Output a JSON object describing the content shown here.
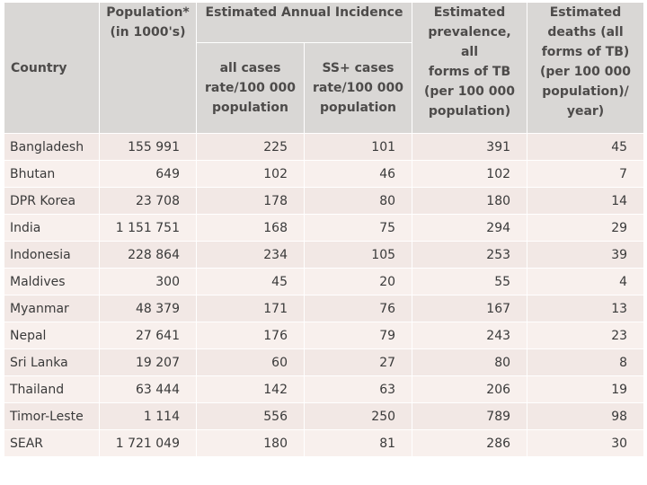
{
  "table": {
    "headers": {
      "country": "Country",
      "population_line1": "Population*",
      "population_line2": "(in 1000's)",
      "incidence_group": "Estimated Annual Incidence",
      "all_cases_line1": "all cases",
      "all_cases_line2": "rate/100 000",
      "all_cases_line3": "population",
      "ss_cases_line1": "SS+ cases",
      "ss_cases_line2": "rate/100 000",
      "ss_cases_line3": "population",
      "prevalence_line1": "Estimated",
      "prevalence_line2": "prevalence, all",
      "prevalence_line3": "forms of TB",
      "prevalence_line4": "(per 100 000",
      "prevalence_line5": "population)",
      "deaths_line1": "Estimated",
      "deaths_line2": "deaths (all",
      "deaths_line3": "forms of TB)",
      "deaths_line4": "(per 100 000",
      "deaths_line5": "population)/",
      "deaths_line6": "year)"
    },
    "rows": [
      {
        "country": "Bangladesh",
        "population": "155 991",
        "all_cases": "225",
        "ss_cases": "101",
        "prevalence": "391",
        "deaths": "45"
      },
      {
        "country": "Bhutan",
        "population": "649",
        "all_cases": "102",
        "ss_cases": "46",
        "prevalence": "102",
        "deaths": "7"
      },
      {
        "country": "DPR Korea",
        "population": "23 708",
        "all_cases": "178",
        "ss_cases": "80",
        "prevalence": "180",
        "deaths": "14"
      },
      {
        "country": "India",
        "population": "1 151 751",
        "all_cases": "168",
        "ss_cases": "75",
        "prevalence": "294",
        "deaths": "29"
      },
      {
        "country": "Indonesia",
        "population": "228 864",
        "all_cases": "234",
        "ss_cases": "105",
        "prevalence": "253",
        "deaths": "39"
      },
      {
        "country": "Maldives",
        "population": "300",
        "all_cases": "45",
        "ss_cases": "20",
        "prevalence": "55",
        "deaths": "4"
      },
      {
        "country": "Myanmar",
        "population": "48 379",
        "all_cases": "171",
        "ss_cases": "76",
        "prevalence": "167",
        "deaths": "13"
      },
      {
        "country": "Nepal",
        "population": "27 641",
        "all_cases": "176",
        "ss_cases": "79",
        "prevalence": "243",
        "deaths": "23"
      },
      {
        "country": "Sri Lanka",
        "population": "19 207",
        "all_cases": "60",
        "ss_cases": "27",
        "prevalence": "80",
        "deaths": "8"
      },
      {
        "country": "Thailand",
        "population": "63 444",
        "all_cases": "142",
        "ss_cases": "63",
        "prevalence": "206",
        "deaths": "19"
      },
      {
        "country": "Timor-Leste",
        "population": "1 114",
        "all_cases": "556",
        "ss_cases": "250",
        "prevalence": "789",
        "deaths": "98"
      },
      {
        "country": "SEAR",
        "population": "1 721 049",
        "all_cases": "180",
        "ss_cases": "81",
        "prevalence": "286",
        "deaths": "30"
      }
    ]
  }
}
